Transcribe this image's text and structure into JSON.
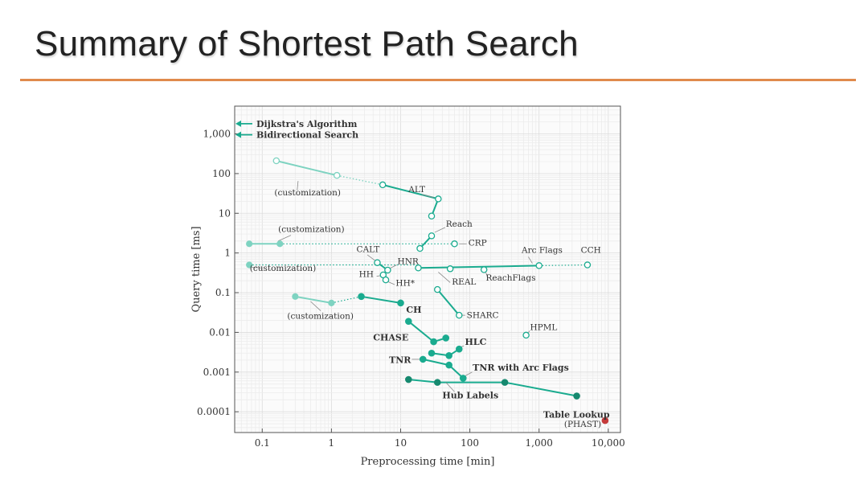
{
  "slide": {
    "title": "Summary of Shortest Path Search"
  },
  "colors": {
    "accent": "#e08a4c",
    "series": "#1aab8f",
    "light": "#7ed3c1",
    "hub": "#16896f",
    "red": "#c43a3a"
  },
  "chart_data": {
    "type": "scatter",
    "xlabel": "Preprocessing time [min]",
    "ylabel": "Query time [ms]",
    "xscale": "log",
    "yscale": "log",
    "xlim": [
      0.04,
      15000
    ],
    "ylim": [
      3e-05,
      5000
    ],
    "grid": true,
    "xticks": [
      {
        "v": 0.1,
        "label": "0.1"
      },
      {
        "v": 1,
        "label": "1"
      },
      {
        "v": 10,
        "label": "10"
      },
      {
        "v": 100,
        "label": "100"
      },
      {
        "v": 1000,
        "label": "1,000"
      },
      {
        "v": 10000,
        "label": "10,000"
      }
    ],
    "yticks": [
      {
        "v": 1000,
        "label": "1,000"
      },
      {
        "v": 100,
        "label": "100"
      },
      {
        "v": 10,
        "label": "10"
      },
      {
        "v": 1,
        "label": "1"
      },
      {
        "v": 0.1,
        "label": "0.1"
      },
      {
        "v": 0.01,
        "label": "0.01"
      },
      {
        "v": 0.001,
        "label": "0.001"
      },
      {
        "v": 0.0001,
        "label": "0.0001"
      }
    ],
    "arrows": [
      {
        "label": "Dijkstra's Algorithm",
        "y": 1800
      },
      {
        "label": "Bidirectional Search",
        "y": 950
      }
    ],
    "segments": [
      {
        "pts": [
          [
            0.16,
            210
          ],
          [
            1.2,
            90
          ]
        ],
        "style": "light"
      },
      {
        "pts": [
          [
            1.2,
            90
          ],
          [
            5.5,
            52
          ]
        ],
        "style": "light-dot"
      },
      {
        "pts": [
          [
            5.5,
            52
          ],
          [
            35,
            23
          ],
          [
            28,
            8.5
          ]
        ],
        "style": "solid"
      },
      {
        "pts": [
          [
            0.065,
            1.7
          ],
          [
            0.18,
            1.7
          ]
        ],
        "style": "light"
      },
      {
        "pts": [
          [
            0.18,
            1.7
          ],
          [
            60,
            1.7
          ]
        ],
        "style": "dot"
      },
      {
        "pts": [
          [
            19,
            1.3
          ],
          [
            28,
            2.7
          ]
        ],
        "style": "solid"
      },
      {
        "pts": [
          [
            0.065,
            0.5
          ],
          [
            18,
            0.5
          ]
        ],
        "style": "dot"
      },
      {
        "pts": [
          [
            18,
            0.42
          ],
          [
            1000,
            0.48
          ]
        ],
        "style": "solid"
      },
      {
        "pts": [
          [
            1000,
            0.48
          ],
          [
            5000,
            0.5
          ]
        ],
        "style": "dot"
      },
      {
        "pts": [
          [
            4.6,
            0.57
          ],
          [
            6.5,
            0.37
          ]
        ],
        "style": "solid"
      },
      {
        "pts": [
          [
            5.6,
            0.28
          ],
          [
            6.1,
            0.21
          ]
        ],
        "style": "solid"
      },
      {
        "pts": [
          [
            34,
            0.12
          ],
          [
            70,
            0.027
          ]
        ],
        "style": "solid"
      },
      {
        "pts": [
          [
            0.3,
            0.08
          ],
          [
            1,
            0.055
          ]
        ],
        "style": "light"
      },
      {
        "pts": [
          [
            1,
            0.055
          ],
          [
            2.7,
            0.08
          ]
        ],
        "style": "dot"
      },
      {
        "pts": [
          [
            2.7,
            0.08
          ],
          [
            10,
            0.055
          ]
        ],
        "style": "solid"
      },
      {
        "pts": [
          [
            13,
            0.019
          ],
          [
            30,
            0.0058
          ],
          [
            45,
            0.0072
          ]
        ],
        "style": "solid"
      },
      {
        "pts": [
          [
            28,
            0.003
          ],
          [
            50,
            0.0026
          ],
          [
            70,
            0.0038
          ]
        ],
        "style": "solid"
      },
      {
        "pts": [
          [
            21,
            0.0021
          ],
          [
            50,
            0.0015
          ],
          [
            80,
            0.0007
          ]
        ],
        "style": "solid"
      },
      {
        "pts": [
          [
            13,
            0.00065
          ],
          [
            34,
            0.00055
          ],
          [
            320,
            0.00055
          ],
          [
            3500,
            0.00025
          ]
        ],
        "style": "solid"
      }
    ],
    "points": [
      {
        "x": 0.16,
        "y": 210,
        "fill": "open-light"
      },
      {
        "x": 1.2,
        "y": 90,
        "fill": "open-light"
      },
      {
        "x": 5.5,
        "y": 52,
        "fill": "open"
      },
      {
        "x": 35,
        "y": 23,
        "fill": "open"
      },
      {
        "x": 28,
        "y": 8.5,
        "fill": "open"
      },
      {
        "x": 0.065,
        "y": 1.7,
        "fill": "light"
      },
      {
        "x": 0.18,
        "y": 1.7,
        "fill": "light"
      },
      {
        "x": 60,
        "y": 1.7,
        "fill": "open"
      },
      {
        "x": 19,
        "y": 1.3,
        "fill": "open"
      },
      {
        "x": 28,
        "y": 2.7,
        "fill": "open"
      },
      {
        "x": 0.065,
        "y": 0.5,
        "fill": "light"
      },
      {
        "x": 18,
        "y": 0.42,
        "fill": "open"
      },
      {
        "x": 52,
        "y": 0.4,
        "fill": "open"
      },
      {
        "x": 160,
        "y": 0.38,
        "fill": "open"
      },
      {
        "x": 1000,
        "y": 0.48,
        "fill": "open"
      },
      {
        "x": 5000,
        "y": 0.5,
        "fill": "open"
      },
      {
        "x": 4.6,
        "y": 0.57,
        "fill": "open"
      },
      {
        "x": 6.5,
        "y": 0.37,
        "fill": "open"
      },
      {
        "x": 5.6,
        "y": 0.28,
        "fill": "open"
      },
      {
        "x": 6.1,
        "y": 0.21,
        "fill": "open"
      },
      {
        "x": 34,
        "y": 0.12,
        "fill": "open"
      },
      {
        "x": 70,
        "y": 0.027,
        "fill": "open"
      },
      {
        "x": 650,
        "y": 0.0085,
        "fill": "open"
      },
      {
        "x": 0.3,
        "y": 0.08,
        "fill": "light"
      },
      {
        "x": 1,
        "y": 0.055,
        "fill": "light"
      },
      {
        "x": 2.7,
        "y": 0.08,
        "fill": "solid"
      },
      {
        "x": 10,
        "y": 0.055,
        "fill": "solid"
      },
      {
        "x": 13,
        "y": 0.019,
        "fill": "solid"
      },
      {
        "x": 30,
        "y": 0.0058,
        "fill": "solid"
      },
      {
        "x": 45,
        "y": 0.0072,
        "fill": "solid"
      },
      {
        "x": 28,
        "y": 0.003,
        "fill": "solid"
      },
      {
        "x": 50,
        "y": 0.0026,
        "fill": "solid"
      },
      {
        "x": 70,
        "y": 0.0038,
        "fill": "solid"
      },
      {
        "x": 21,
        "y": 0.0021,
        "fill": "solid"
      },
      {
        "x": 50,
        "y": 0.0015,
        "fill": "solid"
      },
      {
        "x": 80,
        "y": 0.0007,
        "fill": "solid"
      },
      {
        "x": 13,
        "y": 0.00065,
        "fill": "dark"
      },
      {
        "x": 34,
        "y": 0.00055,
        "fill": "dark"
      },
      {
        "x": 320,
        "y": 0.00055,
        "fill": "dark"
      },
      {
        "x": 3500,
        "y": 0.00025,
        "fill": "dark"
      },
      {
        "x": 9000,
        "y": 6e-05,
        "fill": "red"
      }
    ],
    "annotations": [
      {
        "text": "(customization)",
        "x": 0.15,
        "y": 28,
        "anchor": "start",
        "style": "ann",
        "lead": [
          [
            0.32,
            38
          ],
          [
            0.33,
            65
          ]
        ]
      },
      {
        "text": "ALT",
        "x": 13,
        "y": 34,
        "anchor": "start",
        "style": "ann",
        "lead": [
          [
            30,
            25
          ],
          [
            20,
            30
          ]
        ]
      },
      {
        "text": "Reach",
        "x": 45,
        "y": 4.6,
        "anchor": "start",
        "style": "ann",
        "lead": [
          [
            31,
            3.3
          ],
          [
            44,
            4.4
          ]
        ]
      },
      {
        "text": "(customization)",
        "x": 0.17,
        "y": 3.4,
        "anchor": "start",
        "style": "ann",
        "lead": [
          [
            0.17,
            2
          ],
          [
            0.26,
            2.8
          ]
        ]
      },
      {
        "text": "CRP",
        "x": 95,
        "y": 1.55,
        "anchor": "start",
        "style": "ann",
        "lead": [
          [
            70,
            1.7
          ],
          [
            90,
            1.7
          ]
        ]
      },
      {
        "text": "CALT",
        "x": 2.3,
        "y": 1.05,
        "anchor": "start",
        "style": "ann",
        "lead": [
          [
            3.3,
            0.9
          ],
          [
            4.4,
            0.62
          ]
        ]
      },
      {
        "text": "HNR",
        "x": 9,
        "y": 0.53,
        "anchor": "start",
        "style": "ann",
        "lead": [
          [
            7,
            0.41
          ],
          [
            8.8,
            0.5
          ]
        ]
      },
      {
        "text": "Arc Flags",
        "x": 560,
        "y": 1.0,
        "anchor": "start",
        "style": "ann",
        "lead": [
          [
            700,
            0.8
          ],
          [
            800,
            0.55
          ]
        ]
      },
      {
        "text": "CCH",
        "x": 4000,
        "y": 1.0,
        "anchor": "start",
        "style": "ann",
        "lead": []
      },
      {
        "text": "(customization)",
        "x": 0.066,
        "y": 0.35,
        "anchor": "start",
        "style": "ann",
        "lead": [
          [
            0.066,
            0.44
          ],
          [
            0.1,
            0.42
          ]
        ]
      },
      {
        "text": "HH",
        "x": 2.5,
        "y": 0.25,
        "anchor": "start",
        "style": "ann",
        "lead": [
          [
            4.5,
            0.26
          ],
          [
            5.3,
            0.27
          ]
        ]
      },
      {
        "text": "HH*",
        "x": 8.5,
        "y": 0.15,
        "anchor": "start",
        "style": "ann",
        "lead": [
          [
            6.5,
            0.19
          ],
          [
            8.2,
            0.16
          ]
        ]
      },
      {
        "text": "REAL",
        "x": 55,
        "y": 0.16,
        "anchor": "start",
        "style": "ann",
        "lead": [
          [
            35,
            0.33
          ],
          [
            52,
            0.18
          ]
        ]
      },
      {
        "text": "ReachFlags",
        "x": 170,
        "y": 0.2,
        "anchor": "start",
        "style": "ann",
        "lead": [
          [
            170,
            0.33
          ],
          [
            180,
            0.24
          ]
        ]
      },
      {
        "text": "(customization)",
        "x": 0.23,
        "y": 0.022,
        "anchor": "start",
        "style": "ann",
        "lead": [
          [
            0.5,
            0.06
          ],
          [
            0.7,
            0.035
          ]
        ]
      },
      {
        "text": "CH",
        "x": 12,
        "y": 0.031,
        "anchor": "start",
        "style": "ann-b",
        "lead": []
      },
      {
        "text": "SHARC",
        "x": 90,
        "y": 0.023,
        "anchor": "start",
        "style": "ann",
        "lead": [
          [
            72,
            0.027
          ],
          [
            86,
            0.027
          ]
        ]
      },
      {
        "text": "CHASE",
        "x": 4,
        "y": 0.0062,
        "anchor": "start",
        "style": "ann-b",
        "lead": []
      },
      {
        "text": "HPML",
        "x": 740,
        "y": 0.0115,
        "anchor": "start",
        "style": "ann",
        "lead": [
          [
            680,
            0.009
          ],
          [
            730,
            0.011
          ]
        ]
      },
      {
        "text": "HLC",
        "x": 85,
        "y": 0.0048,
        "anchor": "start",
        "style": "ann-b",
        "lead": [
          [
            72,
            0.0042
          ],
          [
            82,
            0.0046
          ]
        ]
      },
      {
        "text": "TNR",
        "x": 6.8,
        "y": 0.0017,
        "anchor": "start",
        "style": "ann-b",
        "lead": [
          [
            14.5,
            0.0021
          ],
          [
            20,
            0.0021
          ]
        ]
      },
      {
        "text": "TNR with Arc Flags",
        "x": 110,
        "y": 0.0011,
        "anchor": "start",
        "style": "ann-b",
        "lead": [
          [
            85,
            0.0008
          ],
          [
            108,
            0.001
          ]
        ]
      },
      {
        "text": "Hub Labels",
        "x": 40,
        "y": 0.00022,
        "anchor": "start",
        "style": "ann-b",
        "lead": [
          [
            45,
            0.00055
          ],
          [
            60,
            0.00032
          ]
        ]
      },
      {
        "text": "Table Lookup",
        "x": 1150,
        "y": 7.05e-05,
        "anchor": "start",
        "style": "ann-b",
        "lead": []
      },
      {
        "text": "(PHAST)",
        "x": 2300,
        "y": 4.2e-05,
        "anchor": "start",
        "style": "ann",
        "lead": []
      }
    ]
  }
}
